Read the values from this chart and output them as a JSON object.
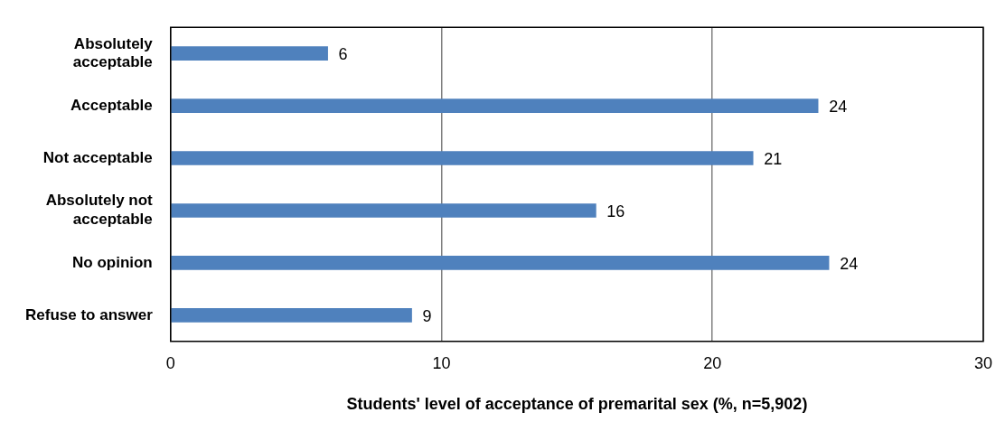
{
  "chart_data": {
    "type": "bar",
    "orientation": "horizontal",
    "xlabel": "Students' level of acceptance of premarital sex (%, n=5,902)",
    "categories": [
      "Absolutely acceptable",
      "Acceptable",
      "Not acceptable",
      "Absolutely not acceptable",
      "No opinion",
      "Refuse to answer"
    ],
    "values": [
      5.8,
      23.9,
      21.5,
      15.7,
      24.3,
      8.9
    ],
    "value_labels": [
      "6",
      "24",
      "21",
      "16",
      "24",
      "9"
    ],
    "color": "#4f81bd",
    "xlim": [
      0,
      30
    ],
    "xticks": [
      0,
      10,
      20,
      30
    ],
    "grid": "x",
    "legend": false
  }
}
